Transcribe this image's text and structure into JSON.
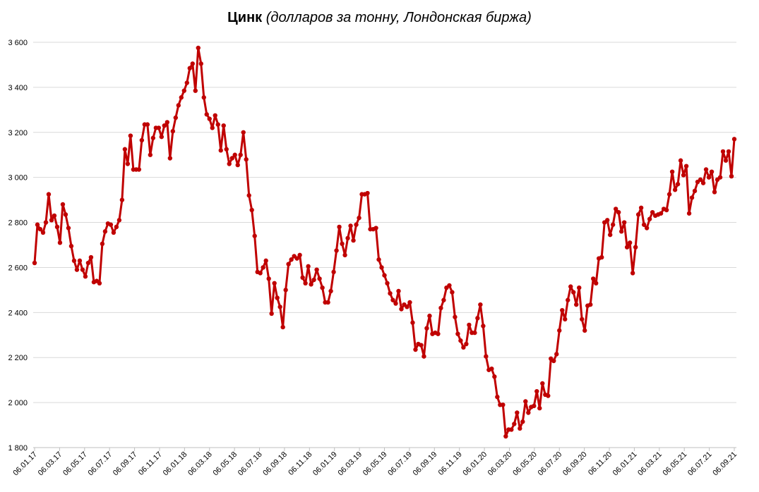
{
  "chart_data": {
    "type": "line",
    "title": "Цинк",
    "subtitle": "(долларов за тонну, Лондонская биржа)",
    "xlabel": "",
    "ylabel": "",
    "ylim": [
      1800,
      3600
    ],
    "yticks": [
      1800,
      2000,
      2200,
      2400,
      2600,
      2800,
      3000,
      3200,
      3400,
      3600
    ],
    "ytick_labels": [
      "1 800",
      "2 000",
      "2 200",
      "2 400",
      "2 600",
      "2 800",
      "3 000",
      "3 200",
      "3 400",
      "3 600"
    ],
    "xtick_labels": [
      "06.01.17",
      "06.03.17",
      "06.05.17",
      "06.07.17",
      "06.09.17",
      "06.11.17",
      "06.01.18",
      "06.03.18",
      "06.05.18",
      "06.07.18",
      "06.09.18",
      "06.11.18",
      "06.01.19",
      "06.03.19",
      "06.05.19",
      "06.07.19",
      "06.09.19",
      "06.11.19",
      "06.01.20",
      "06.03.20",
      "06.05.20",
      "06.07.20",
      "06.09.20",
      "06.11.20",
      "06.01.21",
      "06.03.21",
      "06.05.21",
      "06.07.21",
      "06.09.21"
    ],
    "grid": true,
    "legend": "none",
    "color": "#c00000",
    "series": [
      {
        "values": [
          2620,
          2790,
          2770,
          2755,
          2800,
          2925,
          2810,
          2830,
          2780,
          2710,
          2880,
          2835,
          2775,
          2695,
          2630,
          2590,
          2630,
          2590,
          2560,
          2620,
          2645,
          2535,
          2540,
          2530,
          2705,
          2760,
          2795,
          2790,
          2755,
          2780,
          2810,
          2900,
          3125,
          3060,
          3185,
          3035,
          3035,
          3035,
          3165,
          3235,
          3235,
          3100,
          3175,
          3220,
          3220,
          3180,
          3230,
          3245,
          3085,
          3205,
          3265,
          3320,
          3355,
          3385,
          3420,
          3485,
          3505,
          3385,
          3575,
          3505,
          3355,
          3280,
          3260,
          3220,
          3275,
          3235,
          3120,
          3230,
          3125,
          3060,
          3085,
          3100,
          3055,
          3100,
          3200,
          3080,
          2920,
          2855,
          2740,
          2580,
          2575,
          2600,
          2630,
          2550,
          2395,
          2530,
          2465,
          2425,
          2335,
          2500,
          2615,
          2635,
          2650,
          2640,
          2655,
          2555,
          2530,
          2605,
          2525,
          2545,
          2590,
          2550,
          2510,
          2445,
          2445,
          2495,
          2580,
          2675,
          2780,
          2705,
          2655,
          2730,
          2785,
          2720,
          2790,
          2820,
          2925,
          2925,
          2930,
          2770,
          2770,
          2775,
          2635,
          2600,
          2565,
          2530,
          2485,
          2455,
          2440,
          2495,
          2415,
          2435,
          2425,
          2445,
          2355,
          2235,
          2260,
          2255,
          2205,
          2330,
          2385,
          2305,
          2310,
          2305,
          2420,
          2455,
          2510,
          2520,
          2490,
          2380,
          2305,
          2275,
          2245,
          2260,
          2345,
          2310,
          2310,
          2375,
          2435,
          2340,
          2205,
          2145,
          2150,
          2115,
          2025,
          1990,
          1990,
          1850,
          1880,
          1880,
          1905,
          1955,
          1885,
          1915,
          2005,
          1955,
          1980,
          1985,
          2050,
          1975,
          2085,
          2035,
          2030,
          2195,
          2185,
          2215,
          2320,
          2410,
          2370,
          2455,
          2515,
          2490,
          2435,
          2510,
          2370,
          2320,
          2430,
          2435,
          2550,
          2530,
          2640,
          2645,
          2800,
          2810,
          2745,
          2790,
          2860,
          2845,
          2760,
          2800,
          2690,
          2710,
          2575,
          2690,
          2835,
          2865,
          2790,
          2775,
          2815,
          2845,
          2830,
          2835,
          2840,
          2860,
          2855,
          2925,
          3025,
          2945,
          2970,
          3075,
          3010,
          3050,
          2840,
          2910,
          2940,
          2980,
          2990,
          2975,
          3035,
          3000,
          3025,
          2935,
          2990,
          3000,
          3115,
          3075,
          3115,
          3005,
          3170
        ]
      }
    ]
  }
}
